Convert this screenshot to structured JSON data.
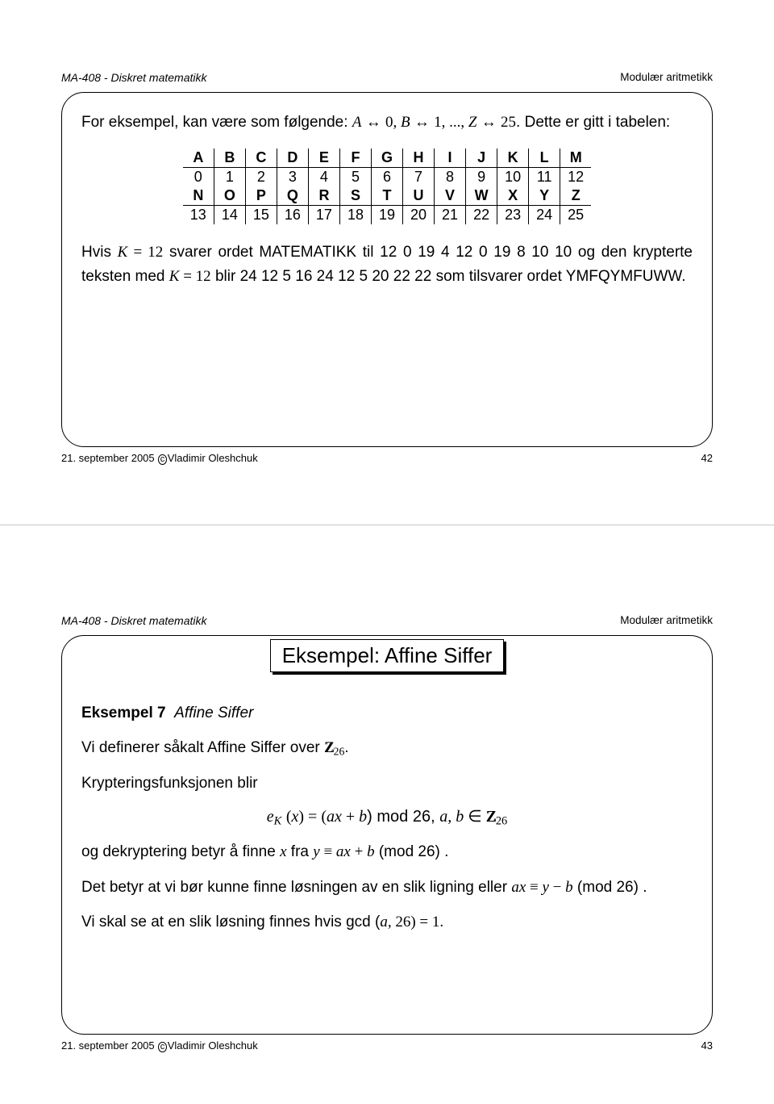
{
  "slide1": {
    "header_left": "MA-408 - Diskret matematikk",
    "header_right": "Modulær aritmetikk",
    "intro_pre": "For eksempel, kan være som følgende: ",
    "map_A": "A",
    "map_0": "0",
    "map_B": "B",
    "map_1": "1",
    "map_Z": "Z",
    "map_25": "25",
    "intro_post": ". Dette er gitt i tabelen:",
    "tab_h1": [
      "A",
      "B",
      "C",
      "D",
      "E",
      "F",
      "G",
      "H",
      "I",
      "J",
      "K",
      "L",
      "M"
    ],
    "tab_v1": [
      "0",
      "1",
      "2",
      "3",
      "4",
      "5",
      "6",
      "7",
      "8",
      "9",
      "10",
      "11",
      "12"
    ],
    "tab_h2": [
      "N",
      "O",
      "P",
      "Q",
      "R",
      "S",
      "T",
      "U",
      "V",
      "W",
      "X",
      "Y",
      "Z"
    ],
    "tab_v2": [
      "13",
      "14",
      "15",
      "16",
      "17",
      "18",
      "19",
      "20",
      "21",
      "22",
      "23",
      "24",
      "25"
    ],
    "p2_a": "Hvis ",
    "p2_k": "K",
    "p2_eq12": " = 12",
    "p2_b": " svarer ordet MATEMATIKK til 12 0 19 4 12 0 19 8 10 10 og den krypterte teksten med ",
    "p2_c": " blir 24 12 5 16 24 12 5 20 22 22 som tilsvarer ordet YMFQYMFUWW.",
    "footer_left": "21. september 2005 ",
    "footer_author": "Vladimir Oleshchuk",
    "footer_page": "42"
  },
  "slide2": {
    "header_left": "MA-408 - Diskret matematikk",
    "header_right": "Modulær aritmetikk",
    "title": "Eksempel: Affine Siffer",
    "ex_label": "Eksempel 7",
    "ex_name": "Affine Siffer",
    "p1_a": "Vi definerer såkalt Affine Siffer over ",
    "p1_z26": "26",
    "p1_b": ".",
    "p2": "Krypteringsfunksjonen blir",
    "eq": "e",
    "eq_K": "K",
    "eq_x": "x",
    "eq_open": " (",
    "eq_close": ") = (",
    "eq_ax": "ax",
    "eq_plus_b": " + ",
    "eq_b": "b",
    "eq_mod": ") mod 26,  ",
    "eq_ab": "a, b",
    "eq_in": " ∈ ",
    "p3_a": "og  dekryptering betyr å finne ",
    "p3_x": "x",
    "p3_b": " fra ",
    "p3_y": "y",
    "p3_equiv": " ≡ ",
    "p3_ax": "ax",
    "p3_plus": " + ",
    "p3_bb": "b",
    "p3_mod": " (mod 26) .",
    "p4_a": "Det betyr at vi bør kunne finne løsningen av en slik ligning eller ",
    "p4_ax": "ax",
    "p4_equiv": " ≡ ",
    "p4_y": "y",
    "p4_minus": " − ",
    "p4_b": "b",
    "p4_mod": " (mod 26) .",
    "p5_a": "Vi skal se at en slik løsning finnes hvis gcd (",
    "p5_ab": "a, ",
    "p5_26": "26) = 1.",
    "footer_left": "21. september 2005 ",
    "footer_author": "Vladimir Oleshchuk",
    "footer_page": "43"
  }
}
